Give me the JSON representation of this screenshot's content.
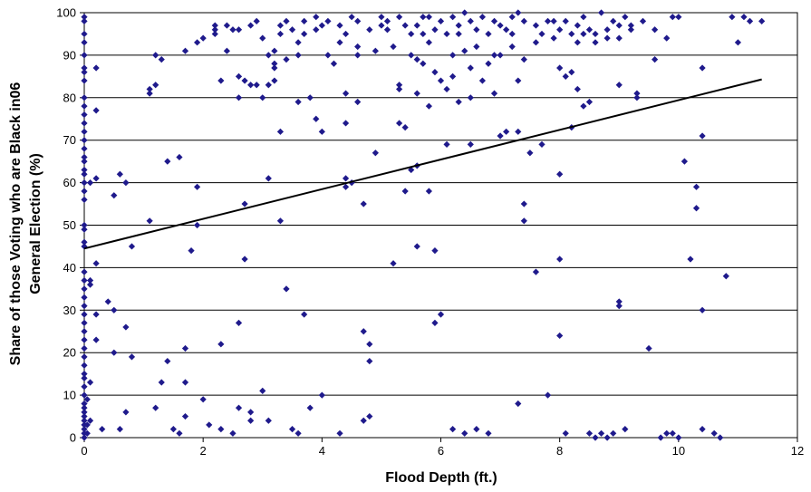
{
  "chart_data": {
    "type": "scatter",
    "title": "",
    "xlabel": "Flood Depth (ft.)",
    "ylabel_lines": [
      "Share of those Voting who are Black in06",
      "General Election (%)"
    ],
    "xlim": [
      0,
      12
    ],
    "ylim": [
      0,
      100
    ],
    "x_ticks": [
      0,
      2,
      4,
      6,
      8,
      10,
      12
    ],
    "y_ticks": [
      0,
      10,
      20,
      30,
      40,
      50,
      60,
      70,
      80,
      90,
      100
    ],
    "grid": "horizontal",
    "legend": "none",
    "marker": "diamond",
    "marker_color": "#1f1a8c",
    "line_color": "#000000",
    "trendline": {
      "x": [
        0,
        11.4
      ],
      "y": [
        44.5,
        84.3
      ]
    },
    "points": [
      [
        0,
        0
      ],
      [
        0,
        1
      ],
      [
        0,
        2
      ],
      [
        0,
        3
      ],
      [
        0,
        4
      ],
      [
        0,
        5
      ],
      [
        0,
        6
      ],
      [
        0,
        7
      ],
      [
        0,
        8
      ],
      [
        0,
        10
      ],
      [
        0,
        12
      ],
      [
        0,
        14
      ],
      [
        0,
        15
      ],
      [
        0,
        17
      ],
      [
        0,
        19
      ],
      [
        0,
        21
      ],
      [
        0,
        23
      ],
      [
        0,
        25
      ],
      [
        0,
        27
      ],
      [
        0,
        29
      ],
      [
        0,
        31
      ],
      [
        0,
        33
      ],
      [
        0,
        35
      ],
      [
        0,
        37
      ],
      [
        0,
        39
      ],
      [
        0,
        45
      ],
      [
        0,
        46
      ],
      [
        0,
        49
      ],
      [
        0,
        50
      ],
      [
        0,
        56
      ],
      [
        0,
        58
      ],
      [
        0,
        60
      ],
      [
        0,
        62
      ],
      [
        0,
        63
      ],
      [
        0,
        65
      ],
      [
        0,
        66
      ],
      [
        0,
        68
      ],
      [
        0,
        70
      ],
      [
        0,
        72
      ],
      [
        0,
        74
      ],
      [
        0,
        76
      ],
      [
        0,
        78
      ],
      [
        0,
        80
      ],
      [
        0,
        84
      ],
      [
        0,
        86
      ],
      [
        0,
        87
      ],
      [
        0,
        90
      ],
      [
        0,
        93
      ],
      [
        0,
        95
      ],
      [
        0,
        98
      ],
      [
        0,
        99
      ],
      [
        0.05,
        1
      ],
      [
        0.05,
        3
      ],
      [
        0.05,
        9
      ],
      [
        0.1,
        4
      ],
      [
        0.1,
        13
      ],
      [
        0.1,
        36
      ],
      [
        0.1,
        37
      ],
      [
        0.1,
        60
      ],
      [
        0.2,
        23
      ],
      [
        0.2,
        29
      ],
      [
        0.2,
        41
      ],
      [
        0.2,
        61
      ],
      [
        0.2,
        77
      ],
      [
        0.2,
        87
      ],
      [
        0.3,
        2
      ],
      [
        0.4,
        32
      ],
      [
        0.5,
        20
      ],
      [
        0.5,
        30
      ],
      [
        0.5,
        57
      ],
      [
        0.6,
        2
      ],
      [
        0.6,
        62
      ],
      [
        0.7,
        6
      ],
      [
        0.7,
        26
      ],
      [
        0.7,
        60
      ],
      [
        0.8,
        19
      ],
      [
        0.8,
        45
      ],
      [
        1.1,
        81
      ],
      [
        1.1,
        82
      ],
      [
        1.1,
        51
      ],
      [
        1.2,
        83
      ],
      [
        1.2,
        7
      ],
      [
        1.2,
        90
      ],
      [
        1.3,
        89
      ],
      [
        1.3,
        13
      ],
      [
        1.4,
        18
      ],
      [
        1.4,
        65
      ],
      [
        1.5,
        2
      ],
      [
        1.6,
        66
      ],
      [
        1.6,
        1
      ],
      [
        1.7,
        5
      ],
      [
        1.7,
        13
      ],
      [
        1.7,
        21
      ],
      [
        1.7,
        91
      ],
      [
        1.8,
        44
      ],
      [
        1.9,
        50
      ],
      [
        1.9,
        59
      ],
      [
        1.9,
        93
      ],
      [
        2.0,
        94
      ],
      [
        2.0,
        9
      ],
      [
        2.1,
        3
      ],
      [
        2.2,
        95
      ],
      [
        2.2,
        97
      ],
      [
        2.3,
        2
      ],
      [
        2.3,
        22
      ],
      [
        2.4,
        91
      ],
      [
        2.5,
        1
      ],
      [
        2.5,
        96
      ],
      [
        2.6,
        27
      ],
      [
        2.6,
        7
      ],
      [
        2.6,
        85
      ],
      [
        2.6,
        80
      ],
      [
        2.7,
        42
      ],
      [
        2.7,
        55
      ],
      [
        2.7,
        84
      ],
      [
        2.8,
        97
      ],
      [
        2.8,
        6
      ],
      [
        2.8,
        4
      ],
      [
        2.9,
        83
      ],
      [
        2.9,
        98
      ],
      [
        3.0,
        11
      ],
      [
        3.0,
        80
      ],
      [
        3.0,
        94
      ],
      [
        3.1,
        4
      ],
      [
        3.1,
        61
      ],
      [
        3.1,
        83
      ],
      [
        3.1,
        90
      ],
      [
        3.2,
        84
      ],
      [
        3.2,
        87
      ],
      [
        3.2,
        91
      ],
      [
        3.3,
        51
      ],
      [
        3.3,
        72
      ],
      [
        3.3,
        95
      ],
      [
        3.4,
        35
      ],
      [
        3.4,
        98
      ],
      [
        3.5,
        2
      ],
      [
        3.6,
        1
      ],
      [
        3.6,
        79
      ],
      [
        3.6,
        93
      ],
      [
        3.7,
        29
      ],
      [
        3.7,
        95
      ],
      [
        3.8,
        7
      ],
      [
        3.8,
        80
      ],
      [
        3.9,
        75
      ],
      [
        3.9,
        99
      ],
      [
        4.0,
        72
      ],
      [
        4.0,
        10
      ],
      [
        4.0,
        97
      ],
      [
        4.1,
        90
      ],
      [
        4.2,
        88
      ],
      [
        4.3,
        1
      ],
      [
        4.4,
        59
      ],
      [
        4.4,
        61
      ],
      [
        4.4,
        74
      ],
      [
        4.4,
        81
      ],
      [
        4.5,
        60
      ],
      [
        4.5,
        99
      ],
      [
        4.6,
        79
      ],
      [
        4.6,
        90
      ],
      [
        4.7,
        55
      ],
      [
        4.7,
        25
      ],
      [
        4.7,
        4
      ],
      [
        4.8,
        18
      ],
      [
        4.8,
        22
      ],
      [
        4.8,
        5
      ],
      [
        4.9,
        67
      ],
      [
        5.0,
        97
      ],
      [
        5.1,
        96
      ],
      [
        5.2,
        41
      ],
      [
        5.3,
        82
      ],
      [
        5.3,
        74
      ],
      [
        5.4,
        58
      ],
      [
        5.4,
        73
      ],
      [
        5.5,
        63
      ],
      [
        5.6,
        45
      ],
      [
        5.6,
        64
      ],
      [
        5.6,
        89
      ],
      [
        5.7,
        99
      ],
      [
        5.8,
        93
      ],
      [
        5.8,
        58
      ],
      [
        5.9,
        44
      ],
      [
        5.9,
        27
      ],
      [
        6.0,
        29
      ],
      [
        6.0,
        84
      ],
      [
        6.1,
        69
      ],
      [
        6.2,
        2
      ],
      [
        6.2,
        85
      ],
      [
        6.3,
        95
      ],
      [
        6.4,
        1
      ],
      [
        6.5,
        87
      ],
      [
        6.5,
        69
      ],
      [
        6.6,
        2
      ],
      [
        6.7,
        84
      ],
      [
        6.8,
        1
      ],
      [
        6.9,
        90
      ],
      [
        7.0,
        71
      ],
      [
        7.1,
        72
      ],
      [
        7.2,
        99
      ],
      [
        7.3,
        8
      ],
      [
        7.3,
        72
      ],
      [
        7.4,
        51
      ],
      [
        7.4,
        55
      ],
      [
        7.5,
        67
      ],
      [
        7.6,
        39
      ],
      [
        7.7,
        69
      ],
      [
        7.8,
        10
      ],
      [
        7.9,
        98
      ],
      [
        8.0,
        62
      ],
      [
        8.0,
        42
      ],
      [
        8.0,
        24
      ],
      [
        8.1,
        1
      ],
      [
        8.2,
        73
      ],
      [
        8.2,
        86
      ],
      [
        8.3,
        93
      ],
      [
        8.4,
        78
      ],
      [
        8.5,
        1
      ],
      [
        8.6,
        0
      ],
      [
        8.7,
        1
      ],
      [
        8.8,
        0
      ],
      [
        8.9,
        1
      ],
      [
        9.0,
        31
      ],
      [
        9.0,
        32
      ],
      [
        9.0,
        83
      ],
      [
        9.1,
        2
      ],
      [
        9.2,
        97
      ],
      [
        9.3,
        80
      ],
      [
        9.3,
        81
      ],
      [
        9.5,
        21
      ],
      [
        9.6,
        89
      ],
      [
        9.7,
        0
      ],
      [
        9.8,
        1
      ],
      [
        9.9,
        1
      ],
      [
        10.0,
        99
      ],
      [
        10.0,
        0
      ],
      [
        10.1,
        65
      ],
      [
        10.2,
        42
      ],
      [
        10.3,
        54
      ],
      [
        10.3,
        59
      ],
      [
        10.4,
        71
      ],
      [
        10.4,
        30
      ],
      [
        10.4,
        2
      ],
      [
        10.4,
        87
      ],
      [
        10.6,
        1
      ],
      [
        10.7,
        0
      ],
      [
        10.8,
        38
      ],
      [
        10.9,
        99
      ],
      [
        11.0,
        93
      ],
      [
        11.1,
        99
      ],
      [
        11.2,
        98
      ],
      [
        11.4,
        98
      ],
      [
        2.2,
        96
      ],
      [
        2.4,
        97
      ],
      [
        2.6,
        96
      ],
      [
        3.3,
        97
      ],
      [
        3.5,
        96
      ],
      [
        3.7,
        98
      ],
      [
        3.9,
        96
      ],
      [
        4.1,
        98
      ],
      [
        4.3,
        97
      ],
      [
        4.4,
        95
      ],
      [
        4.6,
        98
      ],
      [
        4.8,
        96
      ],
      [
        5.0,
        99
      ],
      [
        5.1,
        98
      ],
      [
        5.3,
        99
      ],
      [
        5.4,
        97
      ],
      [
        5.5,
        95
      ],
      [
        5.6,
        97
      ],
      [
        5.7,
        95
      ],
      [
        5.8,
        99
      ],
      [
        5.9,
        96
      ],
      [
        6.0,
        98
      ],
      [
        6.1,
        95
      ],
      [
        6.2,
        99
      ],
      [
        6.3,
        97
      ],
      [
        6.4,
        100
      ],
      [
        6.5,
        98
      ],
      [
        6.6,
        96
      ],
      [
        6.7,
        99
      ],
      [
        6.8,
        95
      ],
      [
        6.9,
        98
      ],
      [
        7.0,
        97
      ],
      [
        7.1,
        96
      ],
      [
        7.2,
        95
      ],
      [
        7.3,
        100
      ],
      [
        7.4,
        98
      ],
      [
        7.6,
        97
      ],
      [
        7.7,
        95
      ],
      [
        7.8,
        98
      ],
      [
        7.9,
        94
      ],
      [
        8.0,
        96
      ],
      [
        8.1,
        98
      ],
      [
        8.2,
        95
      ],
      [
        8.3,
        97
      ],
      [
        8.4,
        99
      ],
      [
        8.5,
        96
      ],
      [
        8.6,
        95
      ],
      [
        8.7,
        100
      ],
      [
        8.8,
        94
      ],
      [
        8.9,
        98
      ],
      [
        9.0,
        97
      ],
      [
        9.1,
        99
      ],
      [
        9.2,
        96
      ],
      [
        9.4,
        98
      ],
      [
        9.6,
        96
      ],
      [
        9.8,
        94
      ],
      [
        9.9,
        99
      ],
      [
        4.3,
        93
      ],
      [
        4.6,
        92
      ],
      [
        4.9,
        91
      ],
      [
        5.2,
        92
      ],
      [
        5.5,
        90
      ],
      [
        5.7,
        88
      ],
      [
        5.9,
        86
      ],
      [
        6.2,
        90
      ],
      [
        6.4,
        91
      ],
      [
        6.6,
        92
      ],
      [
        6.8,
        88
      ],
      [
        7.0,
        90
      ],
      [
        7.2,
        92
      ],
      [
        7.4,
        89
      ],
      [
        7.6,
        93
      ],
      [
        8.0,
        87
      ],
      [
        8.4,
        95
      ],
      [
        8.6,
        93
      ],
      [
        8.8,
        96
      ],
      [
        9.0,
        94
      ],
      [
        3.6,
        90
      ],
      [
        3.4,
        89
      ],
      [
        3.2,
        88
      ],
      [
        5.3,
        83
      ],
      [
        5.6,
        81
      ],
      [
        5.8,
        78
      ],
      [
        6.1,
        82
      ],
      [
        6.3,
        79
      ],
      [
        6.5,
        80
      ],
      [
        6.9,
        81
      ],
      [
        7.3,
        84
      ],
      [
        8.1,
        85
      ],
      [
        8.3,
        82
      ],
      [
        8.5,
        79
      ],
      [
        2.8,
        83
      ],
      [
        2.3,
        84
      ]
    ]
  }
}
